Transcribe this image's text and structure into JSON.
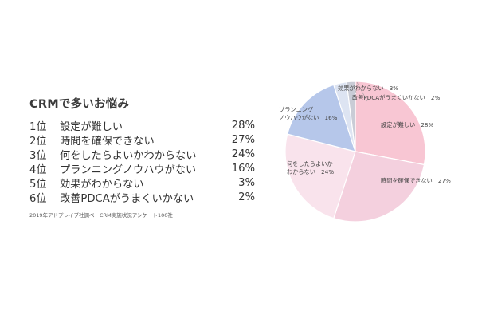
{
  "chart_data": {
    "type": "pie",
    "title": "CRMで多いお悩み",
    "source": "2019年アドプレイブ社調べ　CRM実施状況アンケート100社",
    "slices": [
      {
        "rank": "1位",
        "label": "設定が難しい",
        "value": 28,
        "value_text": "28%",
        "chart_label_lines": [
          "設定が難しい　28%"
        ],
        "color": "#f8c6d3"
      },
      {
        "rank": "2位",
        "label": "時間を確保できない",
        "value": 27,
        "value_text": "27%",
        "chart_label_lines": [
          "時間を確保できない　27%"
        ],
        "color": "#f4d0de"
      },
      {
        "rank": "3位",
        "label": "何をしたらよいかわからない",
        "value": 24,
        "value_text": "24%",
        "chart_label_lines": [
          "何をしたらよいか",
          "わからない　24%"
        ],
        "color": "#f9e3ec"
      },
      {
        "rank": "4位",
        "label": "プランニングノウハウがない",
        "value": 16,
        "value_text": "16%",
        "chart_label_lines": [
          "プランニング",
          "ノウハウがない　16%"
        ],
        "color": "#b6c7ea"
      },
      {
        "rank": "5位",
        "label": "効果がわからない",
        "value": 3,
        "value_text": "3%",
        "chart_label_lines": [
          "効果がわからない　3%"
        ],
        "color": "#dde4f2"
      },
      {
        "rank": "6位",
        "label": "改善PDCAがうまくいかない",
        "value": 2,
        "value_text": "2%",
        "chart_label_lines": [
          "改善PDCAがうまくいかない　2%"
        ],
        "color": "#c9ccd6"
      }
    ]
  }
}
